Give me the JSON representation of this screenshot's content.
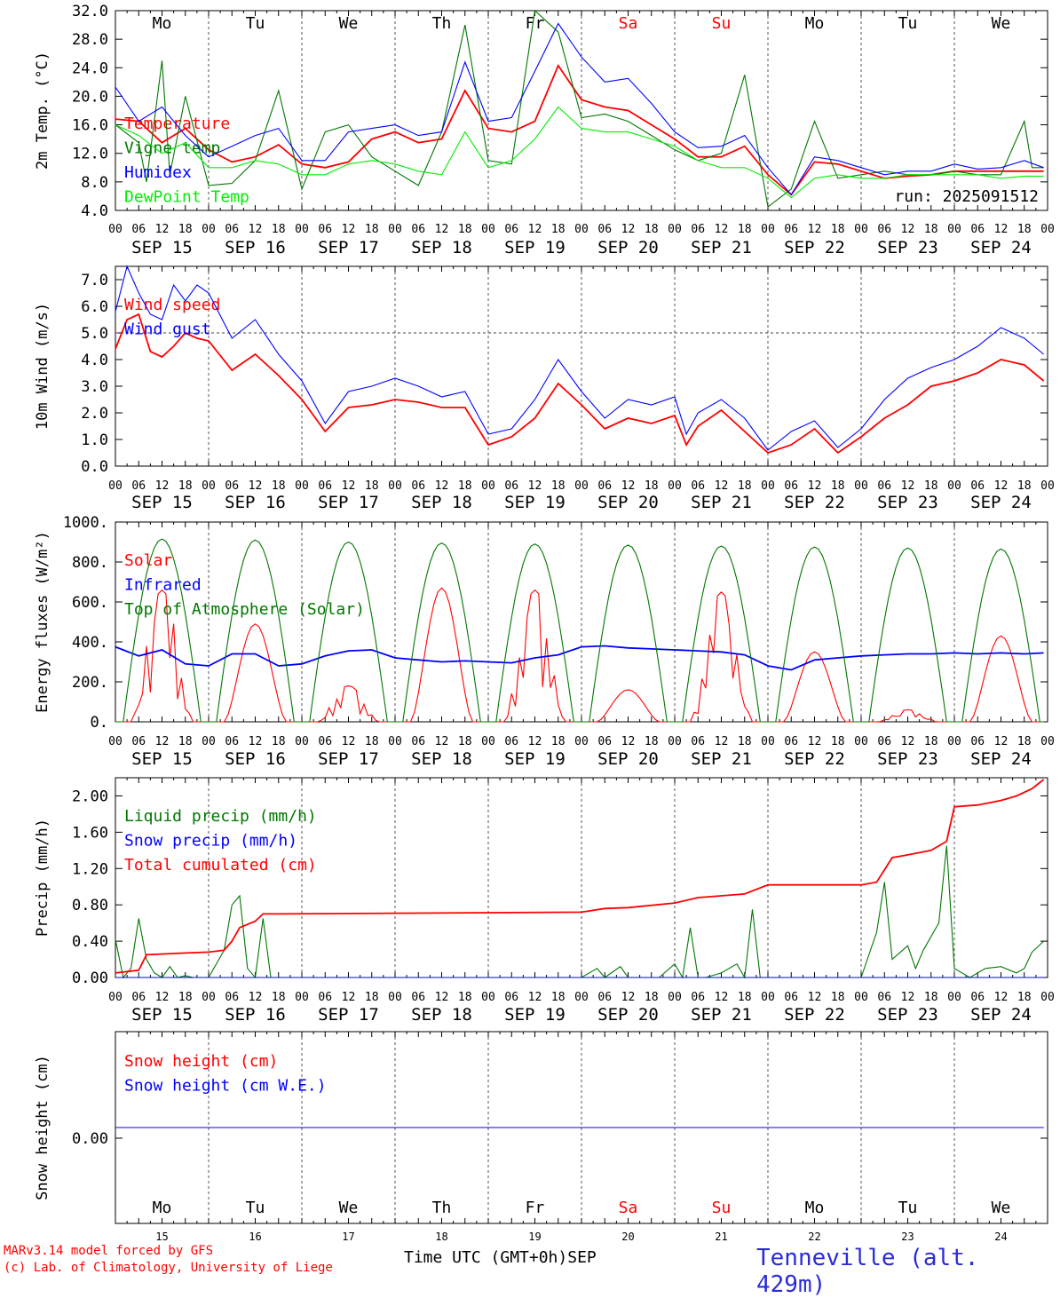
{
  "chart_data": [
    {
      "type": "line",
      "ylabel": "2m Temp. (°C)",
      "ylim": [
        4.0,
        32.0
      ],
      "yticks": [
        "4.0",
        "8.0",
        "12.0",
        "16.0",
        "20.0",
        "24.0",
        "28.0",
        "32.0"
      ],
      "run_label": "run: 2025091512",
      "series": [
        {
          "name": "Temperature",
          "color": "#ff0000",
          "x": [
            0,
            6,
            12,
            18,
            24,
            30,
            36,
            42,
            48,
            54,
            60,
            66,
            72,
            78,
            84,
            90,
            96,
            102,
            108,
            114,
            120,
            126,
            132,
            138,
            144,
            150,
            156,
            162,
            168,
            174,
            180,
            186,
            192,
            198,
            204,
            210,
            216,
            222,
            228,
            234,
            239
          ],
          "values": [
            16.8,
            16.5,
            13.5,
            15.5,
            12.5,
            10.8,
            11.5,
            13.2,
            10.5,
            10.0,
            10.8,
            14.0,
            15.0,
            13.5,
            14.0,
            20.8,
            15.5,
            15.0,
            16.5,
            24.3,
            19.5,
            18.5,
            18.0,
            16.0,
            14.0,
            11.5,
            11.5,
            13.0,
            9.0,
            6.2,
            10.8,
            10.5,
            9.5,
            8.5,
            8.8,
            9.0,
            9.5,
            9.5,
            9.5,
            9.5,
            9.5
          ]
        },
        {
          "name": "Vigne temp",
          "color": "#007700",
          "x": [
            0,
            6,
            8,
            12,
            14,
            18,
            24,
            30,
            36,
            42,
            48,
            54,
            60,
            66,
            72,
            78,
            84,
            90,
            96,
            102,
            108,
            114,
            120,
            126,
            132,
            138,
            144,
            150,
            156,
            162,
            168,
            174,
            180,
            186,
            192,
            198,
            204,
            210,
            216,
            222,
            228,
            234,
            236,
            239
          ],
          "values": [
            16.0,
            13.5,
            8.0,
            25.0,
            9.0,
            20.0,
            7.5,
            7.8,
            11.0,
            20.8,
            7.0,
            15.0,
            16.0,
            11.5,
            9.5,
            7.5,
            15.0,
            30.0,
            11.0,
            10.5,
            32.0,
            29.0,
            17.0,
            17.5,
            16.5,
            14.5,
            12.5,
            11.0,
            12.0,
            23.0,
            4.5,
            7.0,
            16.5,
            8.5,
            9.0,
            9.5,
            9.0,
            9.0,
            9.5,
            9.0,
            9.0,
            16.5,
            10.0,
            10.0
          ]
        },
        {
          "name": "Humidex",
          "color": "#0000ff",
          "x": [
            0,
            6,
            12,
            18,
            24,
            30,
            36,
            42,
            48,
            54,
            60,
            66,
            72,
            78,
            84,
            90,
            96,
            102,
            108,
            114,
            120,
            126,
            132,
            138,
            144,
            150,
            156,
            162,
            168,
            174,
            180,
            186,
            192,
            198,
            204,
            210,
            216,
            222,
            228,
            234,
            239
          ],
          "values": [
            21.3,
            16.5,
            18.5,
            14.5,
            11.5,
            13.0,
            14.5,
            15.5,
            11.0,
            11.0,
            15.0,
            15.5,
            16.0,
            14.5,
            15.0,
            24.8,
            16.5,
            17.0,
            23.5,
            30.2,
            25.5,
            22.0,
            22.5,
            19.0,
            15.0,
            12.8,
            13.0,
            14.5,
            10.0,
            6.2,
            11.5,
            11.0,
            10.0,
            9.0,
            9.5,
            9.5,
            10.5,
            9.8,
            10.0,
            11.0,
            10.0
          ]
        },
        {
          "name": "DewPoint Temp",
          "color": "#00ee00",
          "x": [
            0,
            6,
            12,
            18,
            24,
            30,
            36,
            42,
            48,
            54,
            60,
            66,
            72,
            78,
            84,
            90,
            96,
            102,
            108,
            114,
            120,
            126,
            132,
            138,
            144,
            150,
            156,
            162,
            168,
            174,
            180,
            186,
            192,
            198,
            204,
            210,
            216,
            222,
            228,
            234,
            239
          ],
          "values": [
            16.0,
            14.5,
            12.0,
            13.5,
            10.0,
            10.0,
            11.0,
            10.5,
            9.0,
            9.0,
            10.5,
            11.0,
            10.5,
            9.5,
            9.0,
            15.0,
            10.0,
            11.0,
            14.0,
            18.5,
            15.5,
            15.0,
            15.0,
            14.0,
            13.0,
            11.0,
            10.0,
            10.0,
            8.5,
            5.8,
            8.5,
            9.0,
            8.5,
            8.5,
            9.0,
            9.0,
            9.0,
            9.0,
            8.5,
            8.8,
            8.8
          ]
        }
      ]
    },
    {
      "type": "line",
      "ylabel": "10m Wind (m/s)",
      "ylim": [
        0.0,
        7.5
      ],
      "yticks": [
        "0.0",
        "1.0",
        "2.0",
        "3.0",
        "4.0",
        "5.0",
        "6.0",
        "7.0"
      ],
      "reference_line": 5.0,
      "series": [
        {
          "name": "Wind speed",
          "color": "#ff0000",
          "x": [
            0,
            3,
            6,
            9,
            12,
            15,
            18,
            21,
            24,
            30,
            36,
            42,
            48,
            54,
            60,
            66,
            72,
            78,
            84,
            90,
            96,
            102,
            108,
            114,
            120,
            126,
            132,
            138,
            144,
            147,
            150,
            156,
            162,
            168,
            174,
            180,
            186,
            192,
            198,
            204,
            210,
            216,
            222,
            228,
            234,
            239
          ],
          "values": [
            4.4,
            5.5,
            5.7,
            4.3,
            4.1,
            4.5,
            5.0,
            4.8,
            4.7,
            3.6,
            4.2,
            3.4,
            2.5,
            1.3,
            2.2,
            2.3,
            2.5,
            2.4,
            2.2,
            2.2,
            0.8,
            1.1,
            1.8,
            3.1,
            2.3,
            1.4,
            1.8,
            1.6,
            1.9,
            0.8,
            1.5,
            2.1,
            1.3,
            0.5,
            0.8,
            1.4,
            0.5,
            1.1,
            1.8,
            2.3,
            3.0,
            3.2,
            3.5,
            4.0,
            3.8,
            3.2
          ]
        },
        {
          "name": "Wind gust",
          "color": "#0000ff",
          "x": [
            0,
            3,
            6,
            9,
            12,
            15,
            18,
            21,
            24,
            30,
            36,
            42,
            48,
            54,
            60,
            66,
            72,
            78,
            84,
            90,
            96,
            102,
            108,
            114,
            120,
            126,
            132,
            138,
            144,
            147,
            150,
            156,
            162,
            168,
            174,
            180,
            186,
            192,
            198,
            204,
            210,
            216,
            222,
            228,
            234,
            239
          ],
          "values": [
            5.8,
            7.5,
            6.5,
            5.7,
            5.5,
            6.8,
            6.2,
            6.8,
            6.5,
            4.8,
            5.5,
            4.2,
            3.2,
            1.6,
            2.8,
            3.0,
            3.3,
            3.0,
            2.6,
            2.8,
            1.2,
            1.4,
            2.5,
            4.0,
            2.8,
            1.8,
            2.5,
            2.3,
            2.6,
            1.2,
            2.0,
            2.5,
            1.8,
            0.6,
            1.3,
            1.7,
            0.7,
            1.4,
            2.5,
            3.3,
            3.7,
            4.0,
            4.5,
            5.2,
            4.8,
            4.2
          ]
        }
      ]
    },
    {
      "type": "line",
      "ylabel": "Energy fluxes (W/m²)",
      "ylim": [
        0,
        1000
      ],
      "yticks": [
        "0.",
        "200.",
        "400.",
        "600.",
        "800.",
        "1000."
      ],
      "series": [
        {
          "name": "Solar",
          "color": "#ff0000",
          "peaks": [
            [
              12,
              660
            ],
            [
              36,
              490
            ],
            [
              60,
              180
            ],
            [
              84,
              670
            ],
            [
              108,
              660
            ],
            [
              132,
              160
            ],
            [
              156,
              650
            ],
            [
              180,
              350
            ],
            [
              204,
              60
            ],
            [
              228,
              430
            ]
          ]
        },
        {
          "name": "Infrared",
          "color": "#0000ff",
          "x": [
            0,
            6,
            12,
            18,
            24,
            30,
            36,
            42,
            48,
            54,
            60,
            66,
            72,
            78,
            84,
            90,
            96,
            102,
            108,
            114,
            120,
            126,
            132,
            138,
            144,
            150,
            156,
            162,
            168,
            174,
            180,
            186,
            192,
            198,
            204,
            210,
            216,
            222,
            228,
            234,
            239
          ],
          "values": [
            375,
            330,
            360,
            290,
            280,
            340,
            340,
            280,
            290,
            330,
            355,
            360,
            320,
            310,
            300,
            305,
            300,
            295,
            320,
            335,
            375,
            380,
            370,
            365,
            360,
            355,
            350,
            335,
            280,
            260,
            310,
            320,
            330,
            335,
            340,
            340,
            345,
            340,
            345,
            340,
            345
          ]
        },
        {
          "name": "Top of Atmosphere (Solar)",
          "color": "#007700",
          "peaks": [
            [
              12,
              915
            ],
            [
              36,
              910
            ],
            [
              60,
              900
            ],
            [
              84,
              895
            ],
            [
              108,
              890
            ],
            [
              132,
              885
            ],
            [
              156,
              880
            ],
            [
              180,
              875
            ],
            [
              204,
              870
            ],
            [
              228,
              865
            ]
          ]
        }
      ]
    },
    {
      "type": "line",
      "ylabel": "Precip (mm/h)",
      "ylim": [
        0.0,
        2.2
      ],
      "yticks": [
        "0.00",
        "0.40",
        "0.80",
        "1.20",
        "1.60",
        "2.00"
      ],
      "series": [
        {
          "name": "Liquid precip (mm/h)",
          "color": "#007700",
          "x": [
            0,
            2,
            4,
            6,
            8,
            10,
            12,
            14,
            16,
            18,
            20,
            24,
            28,
            30,
            32,
            34,
            36,
            38,
            40,
            42,
            44,
            48,
            120,
            124,
            126,
            130,
            132,
            140,
            144,
            146,
            148,
            150,
            152,
            156,
            160,
            162,
            164,
            166,
            168,
            180,
            192,
            196,
            198,
            200,
            204,
            206,
            208,
            212,
            214,
            216,
            220,
            224,
            228,
            232,
            234,
            236,
            239
          ],
          "values": [
            0.42,
            0.0,
            0.1,
            0.65,
            0.2,
            0.05,
            0.0,
            0.12,
            0.0,
            0.02,
            0.0,
            0.0,
            0.3,
            0.8,
            0.9,
            0.1,
            0.0,
            0.65,
            0.0,
            0.0,
            0.0,
            0.0,
            0.0,
            0.1,
            0.0,
            0.12,
            0.0,
            0.0,
            0.15,
            0.0,
            0.55,
            0.0,
            0.0,
            0.05,
            0.15,
            0.0,
            0.75,
            0.0,
            0.0,
            0.0,
            0.0,
            0.5,
            1.05,
            0.2,
            0.35,
            0.1,
            0.3,
            0.6,
            1.45,
            0.1,
            0.0,
            0.1,
            0.12,
            0.05,
            0.1,
            0.28,
            0.4
          ]
        },
        {
          "name": "Snow precip (mm/h)",
          "color": "#0000ff",
          "x": [
            0,
            239
          ],
          "values": [
            0.0,
            0.0
          ]
        },
        {
          "name": "Total cumulated (cm)",
          "color": "#ff0000",
          "x": [
            0,
            6,
            8,
            18,
            24,
            28,
            30,
            32,
            36,
            38,
            42,
            120,
            126,
            132,
            144,
            150,
            156,
            162,
            168,
            192,
            196,
            200,
            204,
            210,
            214,
            216,
            222,
            228,
            232,
            236,
            239
          ],
          "values": [
            0.05,
            0.08,
            0.25,
            0.27,
            0.28,
            0.3,
            0.4,
            0.55,
            0.62,
            0.7,
            0.7,
            0.72,
            0.76,
            0.77,
            0.82,
            0.88,
            0.9,
            0.92,
            1.02,
            1.02,
            1.05,
            1.32,
            1.35,
            1.4,
            1.5,
            1.88,
            1.9,
            1.95,
            2.0,
            2.08,
            2.18
          ]
        }
      ]
    },
    {
      "type": "line",
      "ylabel": "Snow height (cm)",
      "yticks": [
        "0.00"
      ],
      "series": [
        {
          "name": "Snow height (cm)",
          "color": "#ff0000",
          "x": [
            0,
            239
          ],
          "values": [
            0.0,
            0.0
          ]
        },
        {
          "name": "Snow height (cm W.E.)",
          "color": "#0000ff",
          "x": [
            0,
            239
          ],
          "values": [
            0.0,
            0.0
          ]
        }
      ]
    }
  ],
  "axis": {
    "hour_ticks": [
      "00",
      "06",
      "12",
      "18"
    ],
    "end_tick": "00",
    "dates": [
      "SEP 15",
      "SEP 16",
      "SEP 17",
      "SEP 18",
      "SEP 19",
      "SEP 20",
      "SEP 21",
      "SEP 22",
      "SEP 23",
      "SEP 24"
    ],
    "weekdays": [
      "Mo",
      "Tu",
      "We",
      "Th",
      "Fr",
      "Sa",
      "Su",
      "Mo",
      "Tu",
      "We"
    ],
    "weekend_days": [
      5,
      6
    ],
    "day_numbers": [
      "15",
      "16",
      "17",
      "18",
      "19",
      "20",
      "21",
      "22",
      "23",
      "24"
    ],
    "month": "SEP"
  },
  "footer": {
    "model_line": "MARv3.14 model forced by GFS",
    "credit_line": "(c) Lab. of Climatology, University of Liege",
    "time_label": "Time UTC (GMT+0h)",
    "month_label": "SEP",
    "station": "Tenneville (alt. 429m)"
  },
  "colors": {
    "red": "#ff0000",
    "green": "#007700",
    "blue": "#0000ff",
    "lightgreen": "#00ee00",
    "weekend": "#ff0000"
  }
}
